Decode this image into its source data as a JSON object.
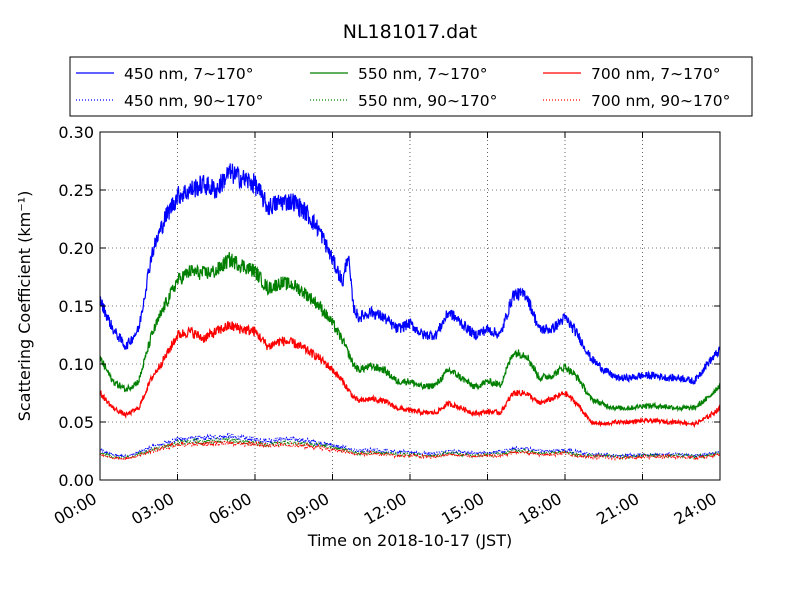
{
  "chart_data": {
    "type": "line",
    "title": "NL181017.dat",
    "xlabel": "Time on 2018-10-17 (JST)",
    "ylabel": "Scattering Coefficient (km⁻¹)",
    "xlim": [
      "00:00",
      "24:00"
    ],
    "ylim": [
      0,
      0.3
    ],
    "x_ticks": [
      "00:00",
      "03:00",
      "06:00",
      "09:00",
      "12:00",
      "15:00",
      "18:00",
      "21:00",
      "24:00"
    ],
    "y_ticks": [
      "0.00",
      "0.05",
      "0.10",
      "0.15",
      "0.20",
      "0.25",
      "0.30"
    ],
    "grid": true,
    "legend_position": "top",
    "x_hours": [
      0,
      0.5,
      1,
      1.5,
      2,
      2.5,
      3,
      3.5,
      4,
      4.5,
      5,
      5.5,
      6,
      6.5,
      7,
      7.5,
      8,
      8.5,
      9,
      9.4,
      9.6,
      9.8,
      10,
      10.5,
      11,
      11.5,
      12,
      12.5,
      13,
      13.5,
      14,
      14.5,
      15,
      15.5,
      16,
      16.5,
      17,
      17.5,
      18,
      18.5,
      19,
      19.5,
      20,
      20.5,
      21,
      21.5,
      22,
      22.5,
      23,
      23.5,
      24
    ],
    "series": [
      {
        "name": "450 nm, 7∼170°",
        "color": "#0000ff",
        "style": "solid",
        "values": [
          0.155,
          0.13,
          0.115,
          0.13,
          0.195,
          0.225,
          0.245,
          0.25,
          0.255,
          0.25,
          0.265,
          0.26,
          0.255,
          0.235,
          0.24,
          0.24,
          0.23,
          0.215,
          0.19,
          0.17,
          0.195,
          0.15,
          0.14,
          0.145,
          0.14,
          0.13,
          0.135,
          0.125,
          0.125,
          0.145,
          0.135,
          0.125,
          0.13,
          0.125,
          0.16,
          0.16,
          0.13,
          0.13,
          0.14,
          0.125,
          0.105,
          0.095,
          0.088,
          0.088,
          0.09,
          0.09,
          0.088,
          0.088,
          0.085,
          0.1,
          0.112
        ]
      },
      {
        "name": "550 nm, 7∼170°",
        "color": "#008000",
        "style": "solid",
        "values": [
          0.105,
          0.085,
          0.078,
          0.085,
          0.125,
          0.15,
          0.172,
          0.18,
          0.178,
          0.18,
          0.19,
          0.185,
          0.18,
          0.165,
          0.17,
          0.168,
          0.16,
          0.15,
          0.135,
          0.12,
          0.11,
          0.1,
          0.095,
          0.098,
          0.095,
          0.085,
          0.085,
          0.08,
          0.082,
          0.095,
          0.088,
          0.08,
          0.085,
          0.082,
          0.11,
          0.108,
          0.088,
          0.09,
          0.098,
          0.088,
          0.07,
          0.065,
          0.062,
          0.062,
          0.064,
          0.064,
          0.063,
          0.062,
          0.062,
          0.07,
          0.082
        ]
      },
      {
        "name": "700 nm, 7∼170°",
        "color": "#ff0000",
        "style": "solid",
        "values": [
          0.075,
          0.062,
          0.056,
          0.062,
          0.088,
          0.105,
          0.125,
          0.128,
          0.122,
          0.128,
          0.133,
          0.13,
          0.128,
          0.115,
          0.12,
          0.118,
          0.112,
          0.105,
          0.095,
          0.085,
          0.078,
          0.072,
          0.068,
          0.07,
          0.068,
          0.062,
          0.06,
          0.058,
          0.058,
          0.066,
          0.062,
          0.057,
          0.059,
          0.058,
          0.075,
          0.075,
          0.066,
          0.07,
          0.075,
          0.065,
          0.05,
          0.048,
          0.05,
          0.05,
          0.051,
          0.051,
          0.05,
          0.05,
          0.048,
          0.054,
          0.062
        ]
      },
      {
        "name": "450 nm, 90∼170°",
        "color": "#0000ff",
        "style": "dotted",
        "values": [
          0.025,
          0.022,
          0.02,
          0.024,
          0.028,
          0.032,
          0.035,
          0.036,
          0.036,
          0.037,
          0.038,
          0.036,
          0.035,
          0.034,
          0.035,
          0.035,
          0.034,
          0.032,
          0.03,
          0.028,
          0.027,
          0.026,
          0.025,
          0.026,
          0.025,
          0.024,
          0.024,
          0.023,
          0.023,
          0.025,
          0.024,
          0.023,
          0.024,
          0.024,
          0.027,
          0.027,
          0.025,
          0.025,
          0.026,
          0.024,
          0.022,
          0.022,
          0.021,
          0.021,
          0.022,
          0.022,
          0.022,
          0.022,
          0.021,
          0.022,
          0.024
        ]
      },
      {
        "name": "550 nm, 90∼170°",
        "color": "#008000",
        "style": "dotted",
        "values": [
          0.023,
          0.02,
          0.019,
          0.022,
          0.026,
          0.029,
          0.032,
          0.033,
          0.033,
          0.034,
          0.034,
          0.033,
          0.032,
          0.031,
          0.032,
          0.032,
          0.031,
          0.03,
          0.028,
          0.026,
          0.025,
          0.024,
          0.023,
          0.024,
          0.023,
          0.022,
          0.022,
          0.021,
          0.021,
          0.023,
          0.022,
          0.021,
          0.022,
          0.022,
          0.025,
          0.025,
          0.023,
          0.023,
          0.024,
          0.022,
          0.021,
          0.021,
          0.02,
          0.02,
          0.021,
          0.021,
          0.021,
          0.021,
          0.02,
          0.021,
          0.023
        ]
      },
      {
        "name": "700 nm, 90∼170°",
        "color": "#ff0000",
        "style": "dotted",
        "values": [
          0.022,
          0.019,
          0.018,
          0.021,
          0.025,
          0.028,
          0.03,
          0.031,
          0.031,
          0.032,
          0.032,
          0.031,
          0.031,
          0.03,
          0.03,
          0.03,
          0.029,
          0.028,
          0.026,
          0.025,
          0.024,
          0.023,
          0.022,
          0.023,
          0.022,
          0.021,
          0.021,
          0.02,
          0.02,
          0.022,
          0.021,
          0.02,
          0.021,
          0.021,
          0.024,
          0.024,
          0.022,
          0.022,
          0.023,
          0.021,
          0.02,
          0.02,
          0.019,
          0.019,
          0.02,
          0.02,
          0.02,
          0.02,
          0.019,
          0.02,
          0.022
        ]
      }
    ]
  }
}
